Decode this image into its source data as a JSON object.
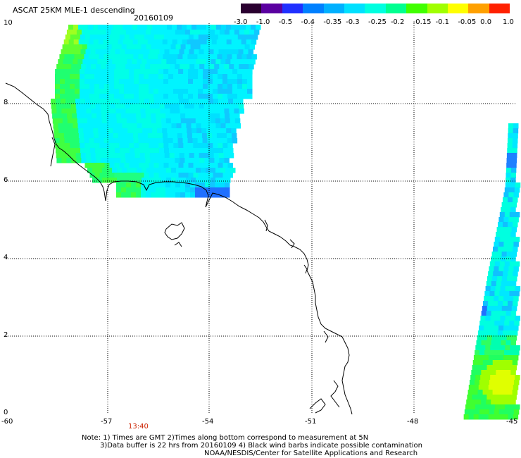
{
  "header": {
    "title": "ASCAT 25KM MLE-1 descending",
    "date": "20160109"
  },
  "colorbar": {
    "labels": [
      "-3.0",
      "-1.0",
      "-0.5",
      "-0.4",
      "-0.35",
      "-0.3",
      "-0.25",
      "-0.2",
      "-0.15",
      "-0.1",
      "-0.05",
      "0.0",
      "1.0"
    ],
    "colors": [
      "#2a0030",
      "#5a00a0",
      "#2030ff",
      "#0080ff",
      "#00b0ff",
      "#00e0ff",
      "#00ffe0",
      "#00ff90",
      "#40ff00",
      "#a0ff00",
      "#ffff00",
      "#ffa000",
      "#ff2000"
    ]
  },
  "axes": {
    "y_labels": [
      "10",
      "8",
      "6",
      "4",
      "2",
      "0"
    ],
    "x_labels": [
      "-60",
      "-57",
      "-54",
      "-51",
      "-48",
      "-45"
    ]
  },
  "overlay": {
    "time_label": "13:40"
  },
  "footer": {
    "note_line1": "Note: 1) Times are GMT 2)Times along bottom correspond to measurement at 5N",
    "note_line2": "3)Data buffer is 22 hrs from 20160109 4) Black wind barbs indicate possible contamination",
    "note_line3": "NOAA/NESDIS/Center for Satellite Applications and Research"
  }
}
